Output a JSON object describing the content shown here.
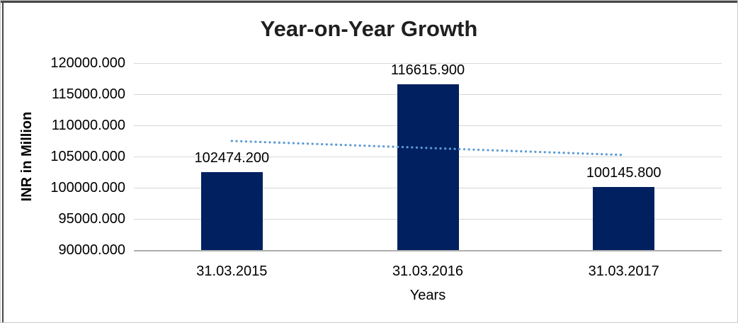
{
  "chart_data": {
    "type": "bar",
    "title": "Year-on-Year Growth",
    "xlabel": "Years",
    "ylabel": "INR in Million",
    "categories": [
      "31.03.2015",
      "31.03.2016",
      "31.03.2017"
    ],
    "values": [
      102474.2,
      116615.9,
      100145.8
    ],
    "value_labels": [
      "102474.200",
      "116615.900",
      "100145.800"
    ],
    "ylim": [
      90000,
      120000
    ],
    "ytick_step": 5000,
    "ytick_labels": [
      "120000.000",
      "115000.000",
      "110000.000",
      "105000.000",
      "100000.000",
      "95000.000",
      "90000.000"
    ],
    "grid": true,
    "legend": "none",
    "trendline": {
      "style": "dotted",
      "color": "#5B9BD5",
      "start_value": 107500,
      "end_value": 105250
    },
    "colors": {
      "bar": "#002060",
      "gridline": "#D6D6D6",
      "axis_line": "#ADADAD",
      "title": "#1F1F1F",
      "text": "#000000",
      "background": "#FFFFFF"
    }
  }
}
